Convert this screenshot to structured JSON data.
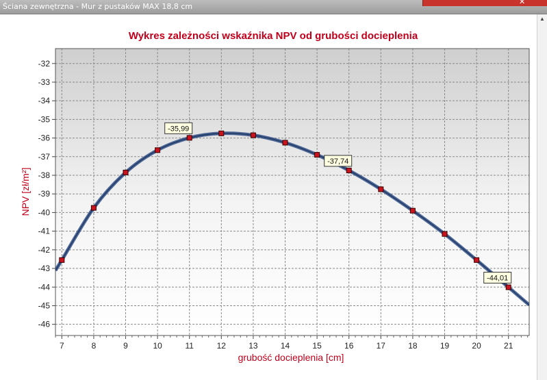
{
  "window": {
    "title": "Ściana zewnętrzna - Mur z pustaków MAX 18,8 cm",
    "close_symbol": "✕"
  },
  "chart_data": {
    "type": "line",
    "title": "Wykres zależności wskaźnika NPV od grubości docieplenia",
    "xlabel": "grubość docieplenia [cm]",
    "ylabel": "NPV [zł/m²]",
    "xlim": [
      6.8,
      21.65
    ],
    "ylim": [
      -46.6,
      -31.2
    ],
    "x_ticks": [
      7,
      8,
      9,
      10,
      11,
      12,
      13,
      14,
      15,
      16,
      17,
      18,
      19,
      20,
      21
    ],
    "y_ticks": [
      -32,
      -33,
      -34,
      -35,
      -36,
      -37,
      -38,
      -39,
      -40,
      -41,
      -42,
      -43,
      -44,
      -45,
      -46
    ],
    "grid": true,
    "series": [
      {
        "x": [
          7,
          8,
          9,
          10,
          11,
          12,
          13,
          14,
          15,
          16,
          17,
          18,
          19,
          20,
          21
        ],
        "y": [
          -42.55,
          -39.75,
          -37.85,
          -36.65,
          -35.99,
          -35.75,
          -35.85,
          -36.25,
          -36.9,
          -37.74,
          -38.75,
          -39.9,
          -41.15,
          -42.55,
          -44.01
        ],
        "line_color": "#2f4f86",
        "marker_color": "#c8141e"
      }
    ],
    "annotations": [
      {
        "x": 11,
        "y": -35.99,
        "text": "-35,99"
      },
      {
        "x": 16,
        "y": -37.74,
        "text": "-37,74"
      },
      {
        "x": 21,
        "y": -44.01,
        "text": "-44,01"
      }
    ],
    "colors": {
      "title": "#c0001a",
      "axis_label": "#c0001a"
    }
  }
}
